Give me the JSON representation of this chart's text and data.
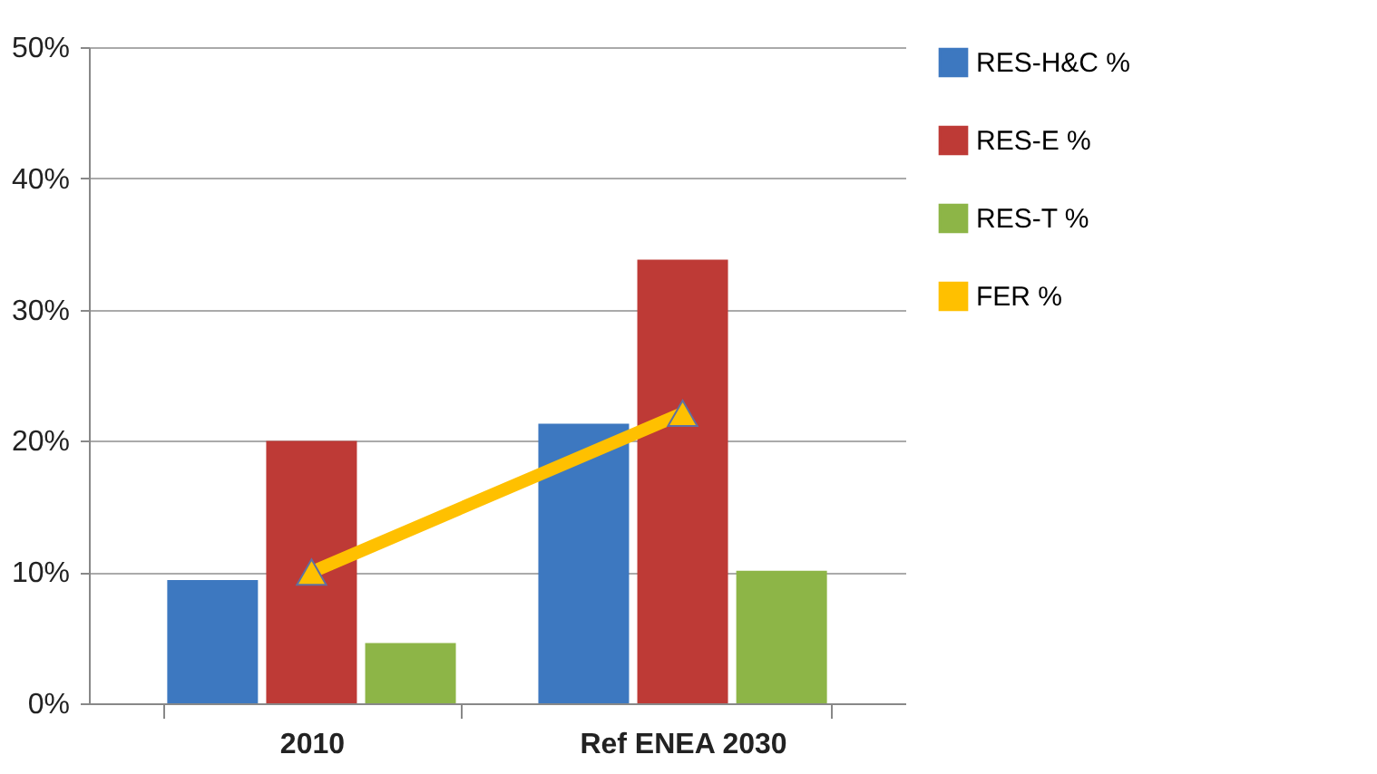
{
  "chart_data": {
    "type": "bar",
    "categories": [
      "2010",
      "Ref ENEA 2030"
    ],
    "series": [
      {
        "name": "RES-H&C %",
        "color": "#3d78c0",
        "values": [
          9.4,
          21.3
        ]
      },
      {
        "name": "RES-E %",
        "color": "#be3a36",
        "values": [
          20,
          33.8
        ]
      },
      {
        "name": "RES-T %",
        "color": "#8db547",
        "values": [
          4.6,
          10.1
        ]
      },
      {
        "name": "FER %",
        "type": "line",
        "color": "#ffc000",
        "marker": "triangle",
        "values": [
          10,
          22.1
        ]
      }
    ],
    "ylim": [
      0,
      50
    ],
    "yticks": [
      {
        "value": 0,
        "label": "0%"
      },
      {
        "value": 10,
        "label": "10%"
      },
      {
        "value": 20,
        "label": "20%"
      },
      {
        "value": 30,
        "label": "30%"
      },
      {
        "value": 40,
        "label": "40%"
      },
      {
        "value": 50,
        "label": "50%"
      }
    ],
    "grid": "y",
    "legend": "right"
  }
}
